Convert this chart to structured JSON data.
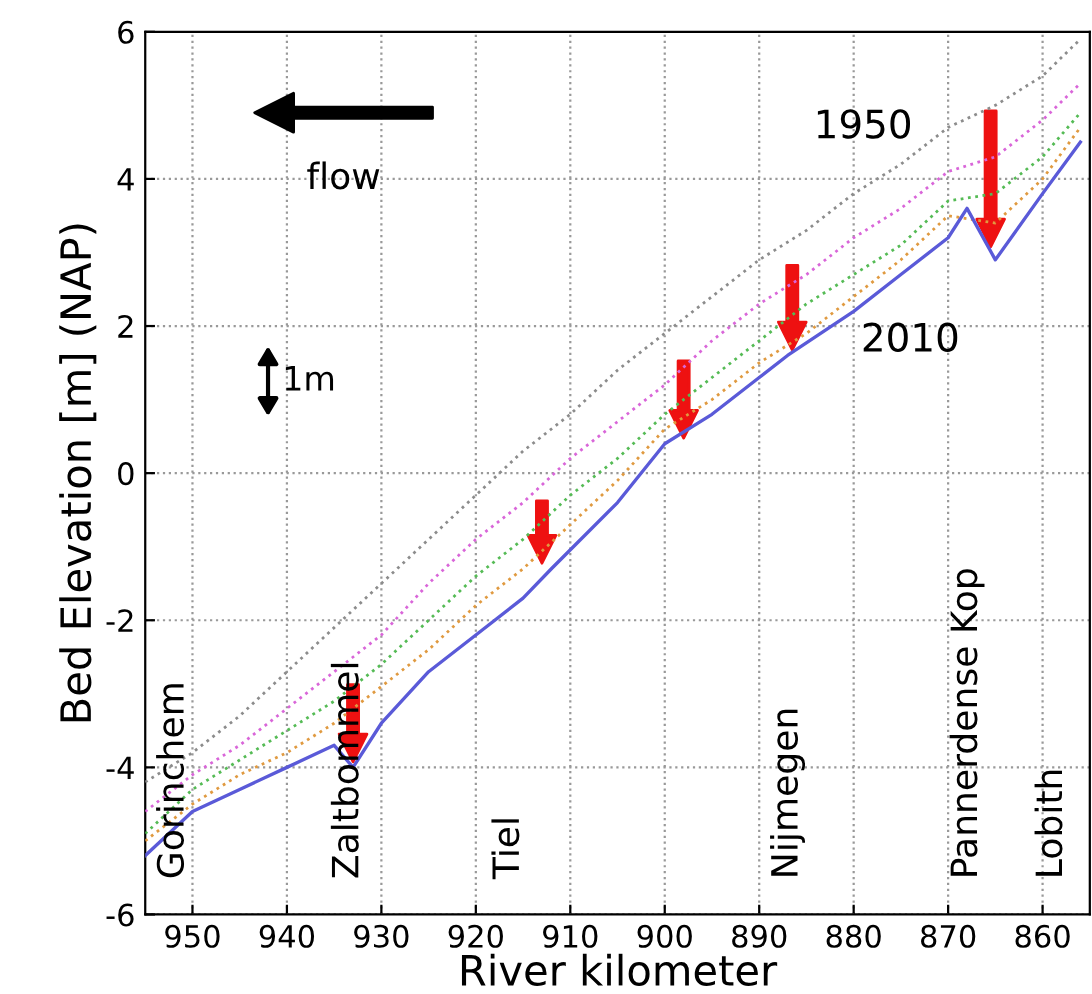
{
  "chart_data": {
    "type": "line",
    "xlabel": "River kilometer",
    "ylabel": "Bed Elevation [m] (NAP)",
    "xlim": [
      955,
      855
    ],
    "xticks": [
      950,
      940,
      930,
      920,
      910,
      900,
      890,
      880,
      870,
      860
    ],
    "ylim": [
      -6,
      6
    ],
    "yticks": [
      -6,
      -4,
      -2,
      0,
      2,
      4,
      6
    ],
    "grid": true,
    "legend": false,
    "marker": "none",
    "series": [
      {
        "name": "1950",
        "color": "#8c8c8c",
        "line_style": "dotted",
        "x": [
          955,
          950,
          945,
          940,
          935,
          930,
          925,
          920,
          915,
          910,
          905,
          900,
          895,
          890,
          885,
          880,
          875,
          870,
          865,
          860,
          856
        ],
        "values": [
          -4.2,
          -3.8,
          -3.3,
          -2.7,
          -2.1,
          -1.5,
          -0.9,
          -0.3,
          0.3,
          0.8,
          1.4,
          1.9,
          2.4,
          2.9,
          3.3,
          3.8,
          4.2,
          4.7,
          5.0,
          5.4,
          5.9
        ]
      },
      {
        "color": "#d966d9",
        "line_style": "dotted",
        "x": [
          955,
          950,
          945,
          940,
          935,
          930,
          925,
          920,
          915,
          910,
          905,
          900,
          895,
          890,
          885,
          880,
          875,
          870,
          865,
          860,
          856
        ],
        "values": [
          -4.6,
          -4.1,
          -3.7,
          -3.2,
          -2.7,
          -2.2,
          -1.5,
          -0.9,
          -0.4,
          0.2,
          0.7,
          1.2,
          1.8,
          2.3,
          2.7,
          3.2,
          3.6,
          4.1,
          4.3,
          4.8,
          5.3
        ]
      },
      {
        "color": "#55bb55",
        "line_style": "dotted",
        "x": [
          955,
          950,
          945,
          940,
          935,
          930,
          925,
          920,
          915,
          910,
          905,
          900,
          895,
          890,
          885,
          880,
          875,
          870,
          865,
          860,
          856
        ],
        "values": [
          -4.9,
          -4.3,
          -3.9,
          -3.5,
          -3.1,
          -2.6,
          -2.0,
          -1.4,
          -0.9,
          -0.3,
          0.2,
          0.8,
          1.3,
          1.8,
          2.3,
          2.7,
          3.1,
          3.7,
          3.8,
          4.3,
          4.9
        ]
      },
      {
        "color": "#e09a40",
        "line_style": "dotted",
        "x": [
          955,
          950,
          945,
          940,
          935,
          930,
          925,
          920,
          915,
          910,
          905,
          900,
          895,
          890,
          885,
          880,
          875,
          870,
          865,
          860,
          856
        ],
        "values": [
          -5.0,
          -4.5,
          -4.1,
          -3.8,
          -3.4,
          -2.9,
          -2.4,
          -1.8,
          -1.3,
          -0.7,
          -0.1,
          0.6,
          1.0,
          1.5,
          1.9,
          2.4,
          2.9,
          3.5,
          3.4,
          4.0,
          4.7
        ]
      },
      {
        "name": "2010",
        "color": "#5a5ad8",
        "line_style": "solid",
        "x": [
          955,
          950,
          945,
          940,
          935,
          933,
          930,
          925,
          920,
          915,
          912,
          905,
          900,
          895,
          890,
          887,
          880,
          875,
          870,
          868,
          865,
          860,
          856
        ],
        "values": [
          -5.2,
          -4.6,
          -4.3,
          -4.0,
          -3.7,
          -4.0,
          -3.4,
          -2.7,
          -2.2,
          -1.7,
          -1.3,
          -0.4,
          0.4,
          0.8,
          1.3,
          1.6,
          2.2,
          2.7,
          3.2,
          3.6,
          2.9,
          3.8,
          4.5
        ]
      }
    ],
    "annotations": [
      "flow",
      "1m",
      "Gorinchem",
      "Zaltbommel",
      "Tiel",
      "Nijmegen",
      "Pannerdense Kop",
      "Lobith"
    ]
  }
}
